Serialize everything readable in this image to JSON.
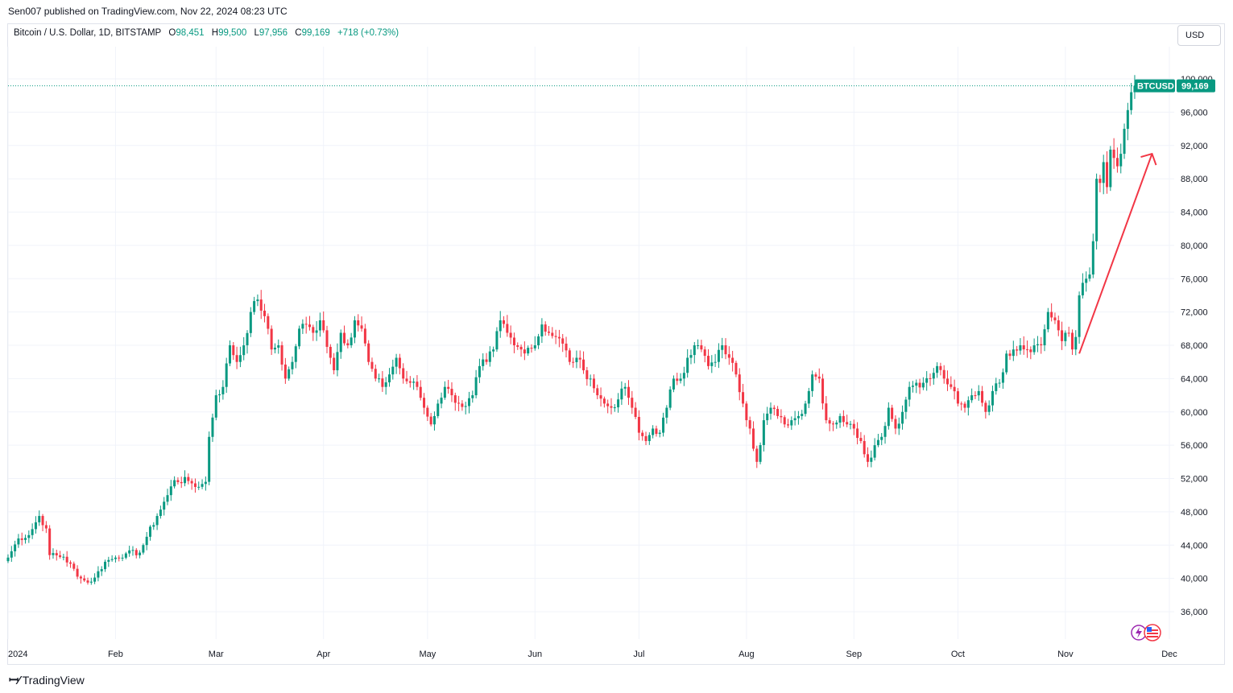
{
  "header": {
    "published": "Sen007 published on TradingView.com, Nov 22, 2024 08:23 UTC"
  },
  "legend": {
    "symbol": "Bitcoin / U.S. Dollar, 1D, BITSTAMP",
    "o_label": "O",
    "o_value": "98,451",
    "h_label": "H",
    "h_value": "99,500",
    "l_label": "L",
    "l_value": "97,956",
    "c_label": "C",
    "c_value": "99,169",
    "change": "+718 (+0.73%)"
  },
  "currency_button": "USD",
  "price_tag": {
    "ticker": "BTCUSD",
    "value": "99,169"
  },
  "footer": {
    "brand": "TradingView",
    "logo_icon": "tradingview-logo-icon"
  },
  "colors": {
    "up": "#089981",
    "down": "#f23645",
    "arrow": "#f23645",
    "grid": "#f0f3fa"
  },
  "chart_data": {
    "type": "candlestick",
    "title": "Bitcoin / U.S. Dollar, 1D, BITSTAMP",
    "yaxis": {
      "min": 32000,
      "max": 104000,
      "ticks": [
        36000,
        40000,
        44000,
        48000,
        52000,
        56000,
        60000,
        64000,
        68000,
        72000,
        76000,
        80000,
        84000,
        88000,
        92000,
        96000,
        100000
      ],
      "tick_labels": [
        "36,000",
        "40,000",
        "44,000",
        "48,000",
        "52,000",
        "56,000",
        "60,000",
        "64,000",
        "68,000",
        "72,000",
        "76,000",
        "80,000",
        "84,000",
        "88,000",
        "92,000",
        "96,000",
        "100,000"
      ]
    },
    "xaxis": {
      "start": "2024-01-01",
      "end": "2024-12-01",
      "ticks": [
        {
          "day": 0,
          "label": "2024"
        },
        {
          "day": 31,
          "label": "Feb"
        },
        {
          "day": 60,
          "label": "Mar"
        },
        {
          "day": 91,
          "label": "Apr"
        },
        {
          "day": 121,
          "label": "May"
        },
        {
          "day": 152,
          "label": "Jun"
        },
        {
          "day": 182,
          "label": "Jul"
        },
        {
          "day": 213,
          "label": "Aug"
        },
        {
          "day": 244,
          "label": "Sep"
        },
        {
          "day": 274,
          "label": "Oct"
        },
        {
          "day": 305,
          "label": "Nov"
        },
        {
          "day": 335,
          "label": "Dec"
        }
      ]
    },
    "last_price": 99169,
    "close_path": [
      [
        0,
        42500
      ],
      [
        3,
        44800
      ],
      [
        6,
        45200
      ],
      [
        9,
        47500
      ],
      [
        11,
        46000
      ],
      [
        12,
        42800
      ],
      [
        16,
        42600
      ],
      [
        21,
        40000
      ],
      [
        23,
        39500
      ],
      [
        25,
        40100
      ],
      [
        28,
        42000
      ],
      [
        31,
        42500
      ],
      [
        34,
        43000
      ],
      [
        38,
        43100
      ],
      [
        40,
        45000
      ],
      [
        43,
        47500
      ],
      [
        46,
        50000
      ],
      [
        48,
        51800
      ],
      [
        52,
        51700
      ],
      [
        55,
        51000
      ],
      [
        57,
        51600
      ],
      [
        58,
        57000
      ],
      [
        60,
        62000
      ],
      [
        62,
        63000
      ],
      [
        64,
        68000
      ],
      [
        66,
        66000
      ],
      [
        68,
        68000
      ],
      [
        70,
        72000
      ],
      [
        72,
        73500
      ],
      [
        74,
        71500
      ],
      [
        76,
        67500
      ],
      [
        78,
        68000
      ],
      [
        80,
        64000
      ],
      [
        82,
        66000
      ],
      [
        84,
        70000
      ],
      [
        86,
        70500
      ],
      [
        88,
        69500
      ],
      [
        90,
        71000
      ],
      [
        91,
        69800
      ],
      [
        93,
        66500
      ],
      [
        94,
        65000
      ],
      [
        96,
        69500
      ],
      [
        98,
        68000
      ],
      [
        100,
        71000
      ],
      [
        102,
        70000
      ],
      [
        104,
        66000
      ],
      [
        106,
        64000
      ],
      [
        108,
        63000
      ],
      [
        110,
        64500
      ],
      [
        112,
        66500
      ],
      [
        114,
        64000
      ],
      [
        116,
        63500
      ],
      [
        118,
        63000
      ],
      [
        120,
        60500
      ],
      [
        122,
        58500
      ],
      [
        124,
        61000
      ],
      [
        126,
        63000
      ],
      [
        128,
        62000
      ],
      [
        130,
        61000
      ],
      [
        132,
        60700
      ],
      [
        134,
        62000
      ],
      [
        136,
        65500
      ],
      [
        138,
        66000
      ],
      [
        140,
        67500
      ],
      [
        142,
        71000
      ],
      [
        144,
        69500
      ],
      [
        146,
        68000
      ],
      [
        148,
        67500
      ],
      [
        150,
        67700
      ],
      [
        152,
        68000
      ],
      [
        154,
        70500
      ],
      [
        156,
        69500
      ],
      [
        158,
        69000
      ],
      [
        160,
        68200
      ],
      [
        162,
        66000
      ],
      [
        164,
        66500
      ],
      [
        166,
        65000
      ],
      [
        168,
        64000
      ],
      [
        170,
        62000
      ],
      [
        172,
        61000
      ],
      [
        174,
        60500
      ],
      [
        176,
        61500
      ],
      [
        178,
        63000
      ],
      [
        180,
        60500
      ],
      [
        182,
        57500
      ],
      [
        184,
        56500
      ],
      [
        186,
        58000
      ],
      [
        188,
        57500
      ],
      [
        190,
        60500
      ],
      [
        192,
        64000
      ],
      [
        194,
        64000
      ],
      [
        196,
        66500
      ],
      [
        198,
        68000
      ],
      [
        200,
        67500
      ],
      [
        202,
        65500
      ],
      [
        204,
        66000
      ],
      [
        206,
        68000
      ],
      [
        208,
        66500
      ],
      [
        210,
        64500
      ],
      [
        212,
        61000
      ],
      [
        214,
        58000
      ],
      [
        216,
        54000
      ],
      [
        218,
        59000
      ],
      [
        220,
        60500
      ],
      [
        222,
        59500
      ],
      [
        224,
        58500
      ],
      [
        226,
        59000
      ],
      [
        228,
        59500
      ],
      [
        230,
        61000
      ],
      [
        232,
        64500
      ],
      [
        234,
        64000
      ],
      [
        236,
        59000
      ],
      [
        238,
        58500
      ],
      [
        240,
        59500
      ],
      [
        242,
        58500
      ],
      [
        244,
        58000
      ],
      [
        246,
        56500
      ],
      [
        248,
        54000
      ],
      [
        250,
        56000
      ],
      [
        252,
        57000
      ],
      [
        254,
        60500
      ],
      [
        256,
        58000
      ],
      [
        258,
        60000
      ],
      [
        260,
        63000
      ],
      [
        262,
        63500
      ],
      [
        264,
        63500
      ],
      [
        266,
        64000
      ],
      [
        268,
        65500
      ],
      [
        270,
        64000
      ],
      [
        272,
        63000
      ],
      [
        274,
        61000
      ],
      [
        276,
        60500
      ],
      [
        278,
        62000
      ],
      [
        280,
        62500
      ],
      [
        282,
        60000
      ],
      [
        284,
        62500
      ],
      [
        286,
        63500
      ],
      [
        288,
        67000
      ],
      [
        290,
        67500
      ],
      [
        292,
        68000
      ],
      [
        294,
        67500
      ],
      [
        296,
        68000
      ],
      [
        298,
        68000
      ],
      [
        300,
        72000
      ],
      [
        302,
        71000
      ],
      [
        304,
        68500
      ],
      [
        306,
        69500
      ],
      [
        307,
        67500
      ],
      [
        308,
        69000
      ],
      [
        309,
        74000
      ],
      [
        310,
        75500
      ],
      [
        311,
        76000
      ],
      [
        312,
        76500
      ],
      [
        313,
        80500
      ],
      [
        314,
        88000
      ],
      [
        315,
        87500
      ],
      [
        316,
        90000
      ],
      [
        317,
        87000
      ],
      [
        318,
        91500
      ],
      [
        319,
        90500
      ],
      [
        320,
        89500
      ],
      [
        321,
        91000
      ],
      [
        322,
        94000
      ],
      [
        324,
        98400
      ],
      [
        325,
        99169
      ]
    ],
    "annotation": {
      "type": "arrow",
      "from": {
        "day": 309,
        "price": 67000
      },
      "to": {
        "day": 330,
        "price": 91000
      }
    }
  }
}
